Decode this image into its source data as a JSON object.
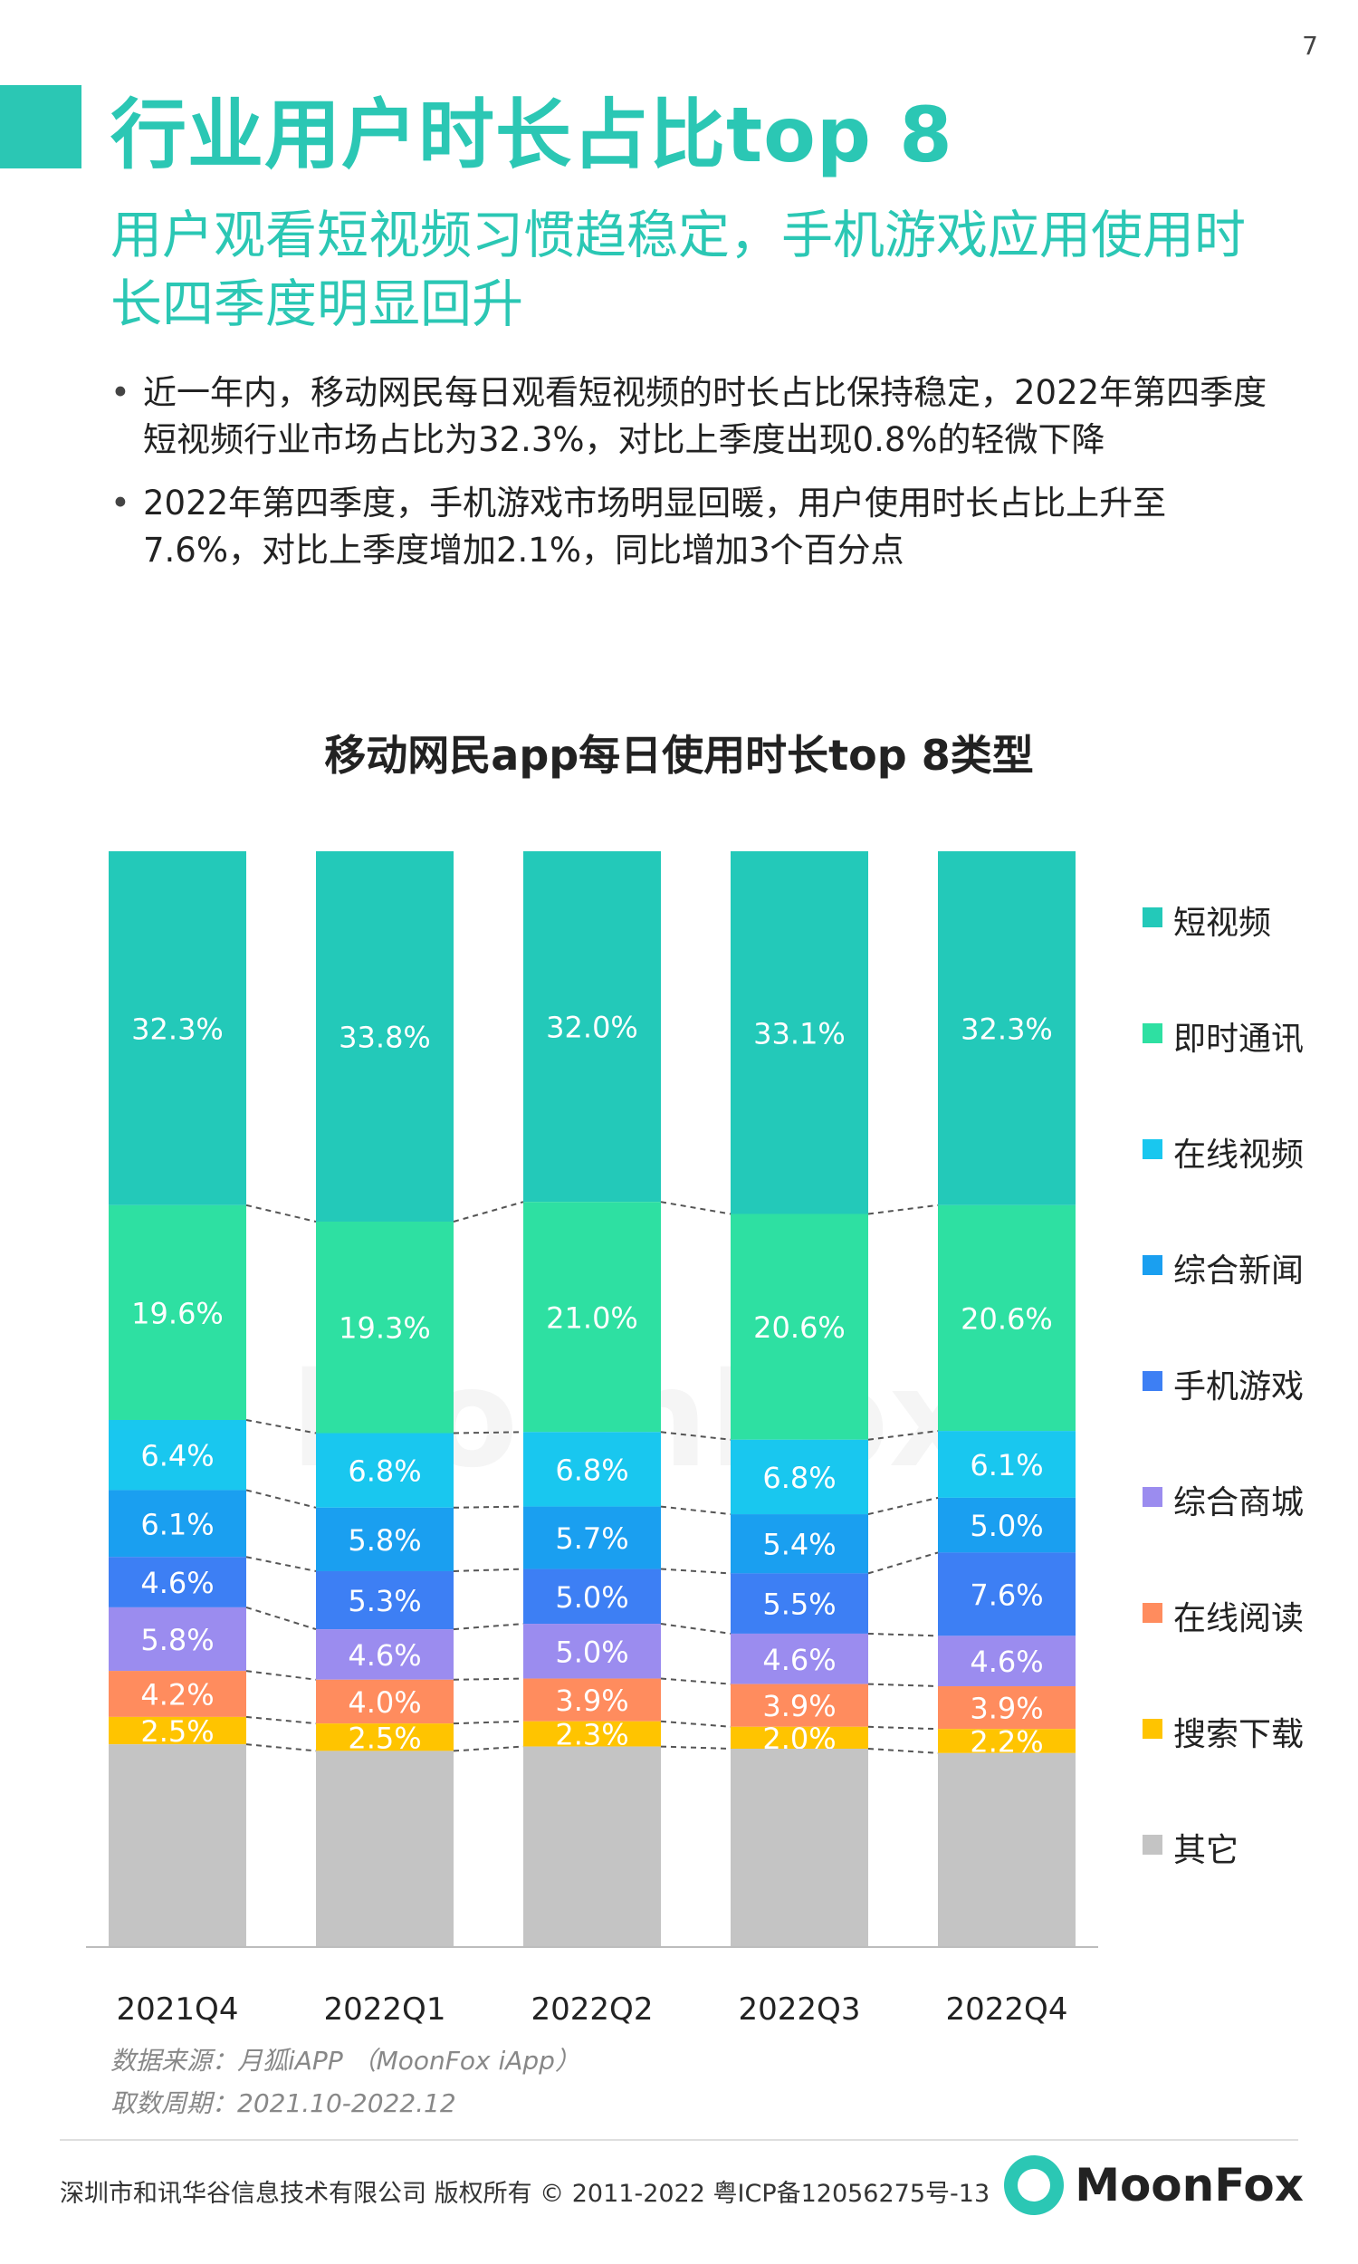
{
  "page": {
    "number": "7",
    "title": "行业用户时长占比top 8",
    "subtitle": "用户观看短视频习惯趋稳定，手机游戏应用使用时长四季度明显回升",
    "bullets": [
      "近一年内，移动网民每日观看短视频的时长占比保持稳定，2022年第四季度短视频行业市场占比为32.3%，对比上季度出现0.8%的轻微下降",
      "2022年第四季度，手机游戏市场明显回暖，用户使用时长占比上升至7.6%，对比上季度增加2.1%，同比增加3个百分点"
    ],
    "watermark": "MoonFox"
  },
  "chart_data": {
    "type": "bar",
    "stacked": true,
    "normalized": true,
    "title": "移动网民app每日使用时长top 8类型",
    "categories": [
      "2021Q4",
      "2022Q1",
      "2022Q2",
      "2022Q3",
      "2022Q4"
    ],
    "series": [
      {
        "name": "短视频",
        "color": "#23c9b9",
        "values": [
          32.3,
          33.8,
          32.0,
          33.1,
          32.3
        ],
        "labels": [
          "32.3%",
          "33.8%",
          "32.0%",
          "33.1%",
          "32.3%"
        ]
      },
      {
        "name": "即时通讯",
        "color": "#2ee0a2",
        "values": [
          19.6,
          19.3,
          21.0,
          20.6,
          20.6
        ],
        "labels": [
          "19.6%",
          "19.3%",
          "21.0%",
          "20.6%",
          "20.6%"
        ]
      },
      {
        "name": "在线视频",
        "color": "#19c7ef",
        "values": [
          6.4,
          6.8,
          6.8,
          6.8,
          6.1
        ],
        "labels": [
          "6.4%",
          "6.8%",
          "6.8%",
          "6.8%",
          "6.1%"
        ]
      },
      {
        "name": "综合新闻",
        "color": "#1a9ff0",
        "values": [
          6.1,
          5.8,
          5.7,
          5.4,
          5.0
        ],
        "labels": [
          "6.1%",
          "5.8%",
          "5.7%",
          "5.4%",
          "5.0%"
        ]
      },
      {
        "name": "手机游戏",
        "color": "#3d7ff4",
        "values": [
          4.6,
          5.3,
          5.0,
          5.5,
          7.6
        ],
        "labels": [
          "4.6%",
          "5.3%",
          "5.0%",
          "5.5%",
          "7.6%"
        ]
      },
      {
        "name": "综合商城",
        "color": "#9b8cef",
        "values": [
          5.8,
          4.6,
          5.0,
          4.6,
          4.6
        ],
        "labels": [
          "5.8%",
          "4.6%",
          "5.0%",
          "4.6%",
          "4.6%"
        ]
      },
      {
        "name": "在线阅读",
        "color": "#ff8c5e",
        "values": [
          4.2,
          4.0,
          3.9,
          3.9,
          3.9
        ],
        "labels": [
          "4.2%",
          "4.0%",
          "3.9%",
          "3.9%",
          "3.9%"
        ]
      },
      {
        "name": "搜索下载",
        "color": "#ffc400",
        "values": [
          2.5,
          2.5,
          2.3,
          2.0,
          2.2
        ],
        "labels": [
          "2.5%",
          "2.5%",
          "2.3%",
          "2.0%",
          "2.2%"
        ]
      },
      {
        "name": "其它",
        "color": "#c4c4c4",
        "values": [
          18.5,
          17.9,
          18.3,
          18.1,
          17.7
        ],
        "labels": [
          "",
          "",
          "",
          "",
          ""
        ]
      }
    ],
    "legend_position": "right",
    "connector_lines": "dashed",
    "grid": false
  },
  "source": {
    "line1": "数据来源：月狐iAPP （MoonFox iApp）",
    "line2": "取数周期：2021.10-2022.12"
  },
  "footer": {
    "copyright": "深圳市和讯华谷信息技术有限公司 版权所有 © 2011-2022 粤ICP备12056275号-13",
    "logo_text": "MoonFox"
  }
}
